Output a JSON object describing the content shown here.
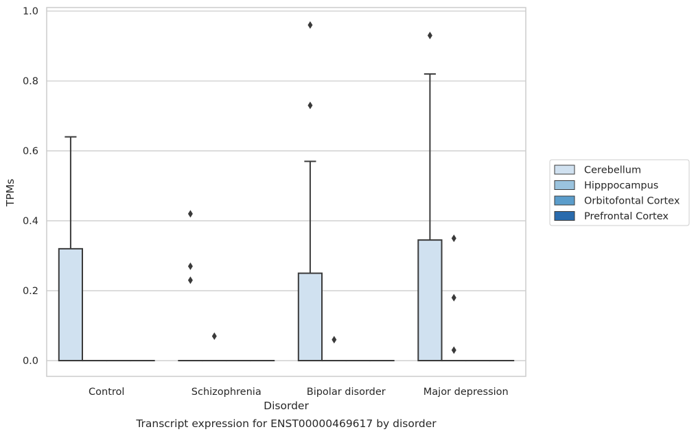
{
  "chart_data": {
    "type": "boxplot",
    "caption": "Transcript expression for ENST00000469617 by disorder",
    "xlabel": "Disorder",
    "ylabel": "TPMs",
    "ylim": [
      -0.045,
      1.01
    ],
    "yticks": [
      0.0,
      0.2,
      0.4,
      0.6,
      0.8,
      1.0
    ],
    "ytick_labels": [
      "0.0",
      "0.2",
      "0.4",
      "0.6",
      "0.8",
      "1.0"
    ],
    "grid": true,
    "legend_position": "right",
    "categories": [
      "Control",
      "Schizophrenia",
      "Bipolar disorder",
      "Major depression"
    ],
    "series": [
      {
        "name": "Cerebellum",
        "color": "#d0e1f0",
        "boxes": [
          {
            "q1": 0.0,
            "median": 0.0,
            "q3": 0.32,
            "whisker_low": 0.0,
            "whisker_high": 0.64,
            "outliers": []
          },
          {
            "q1": 0.0,
            "median": 0.0,
            "q3": 0.0,
            "whisker_low": 0.0,
            "whisker_high": 0.0,
            "outliers": [
              0.42,
              0.27,
              0.23
            ]
          },
          {
            "q1": 0.0,
            "median": 0.0,
            "q3": 0.25,
            "whisker_low": 0.0,
            "whisker_high": 0.57,
            "outliers": [
              0.73,
              0.96
            ]
          },
          {
            "q1": 0.0,
            "median": 0.0,
            "q3": 0.345,
            "whisker_low": 0.0,
            "whisker_high": 0.82,
            "outliers": [
              0.93
            ]
          }
        ]
      },
      {
        "name": "Hipppocampus",
        "color": "#9ac3de",
        "boxes": [
          {
            "q1": 0.0,
            "median": 0.0,
            "q3": 0.0,
            "whisker_low": 0.0,
            "whisker_high": 0.0,
            "outliers": []
          },
          {
            "q1": 0.0,
            "median": 0.0,
            "q3": 0.0,
            "whisker_low": 0.0,
            "whisker_high": 0.0,
            "outliers": [
              0.07
            ]
          },
          {
            "q1": 0.0,
            "median": 0.0,
            "q3": 0.0,
            "whisker_low": 0.0,
            "whisker_high": 0.0,
            "outliers": [
              0.06
            ]
          },
          {
            "q1": 0.0,
            "median": 0.0,
            "q3": 0.0,
            "whisker_low": 0.0,
            "whisker_high": 0.0,
            "outliers": [
              0.35,
              0.18,
              0.03
            ]
          }
        ]
      },
      {
        "name": "Orbitofontal Cortex",
        "color": "#5b9dcb",
        "boxes": [
          {
            "q1": 0.0,
            "median": 0.0,
            "q3": 0.0,
            "whisker_low": 0.0,
            "whisker_high": 0.0,
            "outliers": []
          },
          {
            "q1": 0.0,
            "median": 0.0,
            "q3": 0.0,
            "whisker_low": 0.0,
            "whisker_high": 0.0,
            "outliers": []
          },
          {
            "q1": 0.0,
            "median": 0.0,
            "q3": 0.0,
            "whisker_low": 0.0,
            "whisker_high": 0.0,
            "outliers": []
          },
          {
            "q1": 0.0,
            "median": 0.0,
            "q3": 0.0,
            "whisker_low": 0.0,
            "whisker_high": 0.0,
            "outliers": []
          }
        ]
      },
      {
        "name": "Prefrontal Cortex",
        "color": "#2a6bad",
        "boxes": [
          {
            "q1": 0.0,
            "median": 0.0,
            "q3": 0.0,
            "whisker_low": 0.0,
            "whisker_high": 0.0,
            "outliers": []
          },
          {
            "q1": 0.0,
            "median": 0.0,
            "q3": 0.0,
            "whisker_low": 0.0,
            "whisker_high": 0.0,
            "outliers": []
          },
          {
            "q1": 0.0,
            "median": 0.0,
            "q3": 0.0,
            "whisker_low": 0.0,
            "whisker_high": 0.0,
            "outliers": []
          },
          {
            "q1": 0.0,
            "median": 0.0,
            "q3": 0.0,
            "whisker_low": 0.0,
            "whisker_high": 0.0,
            "outliers": []
          }
        ]
      }
    ]
  }
}
